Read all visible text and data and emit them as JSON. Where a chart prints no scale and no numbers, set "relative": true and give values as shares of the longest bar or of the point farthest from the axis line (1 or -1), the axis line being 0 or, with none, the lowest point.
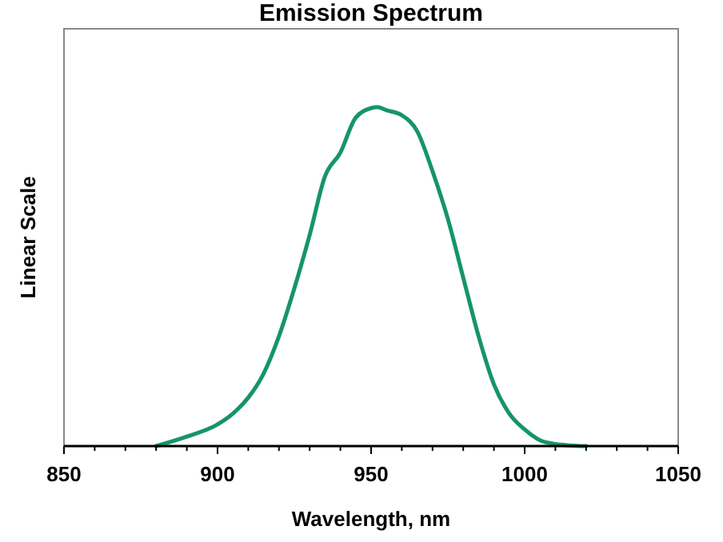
{
  "chart_data": {
    "type": "line",
    "title": "Emission Spectrum",
    "xlabel": "Wavelength, nm",
    "ylabel": "Linear Scale",
    "relative": true,
    "xlim": [
      850,
      1050
    ],
    "xticks": [
      850,
      {
        "value": 860,
        "label": null
      },
      {
        "value": 870,
        "label": null
      },
      {
        "value": 880,
        "label": null
      },
      {
        "value": 890,
        "label": null
      },
      900,
      {
        "value": 910,
        "label": null
      },
      {
        "value": 920,
        "label": null
      },
      {
        "value": 930,
        "label": null
      },
      {
        "value": 940,
        "label": null
      },
      950,
      {
        "value": 960,
        "label": null
      },
      {
        "value": 970,
        "label": null
      },
      {
        "value": 980,
        "label": null
      },
      {
        "value": 990,
        "label": null
      },
      1000,
      {
        "value": 1010,
        "label": null
      },
      {
        "value": 1020,
        "label": null
      },
      {
        "value": 1030,
        "label": null
      },
      {
        "value": 1040,
        "label": null
      },
      1050
    ],
    "series": [
      {
        "color": "#16946a",
        "x": [
          880,
          890,
          900,
          905,
          910,
          915,
          920,
          925,
          930,
          935,
          940,
          945,
          950,
          952,
          955,
          960,
          965,
          970,
          975,
          980,
          985,
          990,
          995,
          1000,
          1005,
          1010,
          1015,
          1020
        ],
        "values": [
          0,
          0.028,
          0.064,
          0.096,
          0.143,
          0.214,
          0.324,
          0.465,
          0.623,
          0.796,
          0.866,
          0.969,
          0.997,
          1,
          0.991,
          0.976,
          0.929,
          0.811,
          0.67,
          0.497,
          0.324,
          0.182,
          0.096,
          0.049,
          0.017,
          0.006,
          0.002,
          0
        ]
      }
    ],
    "grid": false,
    "marker": "none",
    "line_style": "solid"
  }
}
